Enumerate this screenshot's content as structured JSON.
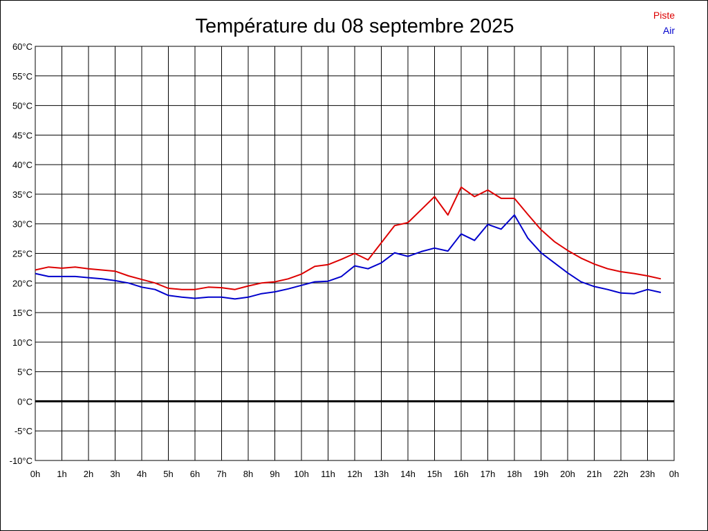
{
  "chart_data": {
    "type": "line",
    "title": "Température du 08 septembre 2025",
    "xlabel": "",
    "ylabel": "",
    "x_tick_labels": [
      "0h",
      "1h",
      "2h",
      "3h",
      "4h",
      "5h",
      "6h",
      "7h",
      "8h",
      "9h",
      "10h",
      "11h",
      "12h",
      "13h",
      "14h",
      "15h",
      "16h",
      "17h",
      "18h",
      "19h",
      "20h",
      "21h",
      "22h",
      "23h",
      "0h"
    ],
    "y_tick_labels": [
      "60°C",
      "55°C",
      "50°C",
      "45°C",
      "40°C",
      "35°C",
      "30°C",
      "25°C",
      "20°C",
      "15°C",
      "10°C",
      "5°C",
      "0°C",
      "-5°C",
      "-10°C"
    ],
    "y_ticks": [
      60,
      55,
      50,
      45,
      40,
      35,
      30,
      25,
      20,
      15,
      10,
      5,
      0,
      -5,
      -10
    ],
    "xlim": [
      0,
      24
    ],
    "ylim": [
      -10,
      60
    ],
    "grid": true,
    "legend_position": "top-right",
    "x": [
      0,
      0.5,
      1,
      1.5,
      2,
      2.5,
      3,
      3.5,
      4,
      4.5,
      5,
      5.5,
      6,
      6.5,
      7,
      7.5,
      8,
      8.5,
      9,
      9.5,
      10,
      10.5,
      11,
      11.5,
      12,
      12.5,
      13,
      13.5,
      14,
      14.5,
      15,
      15.5,
      16,
      16.5,
      17,
      17.5,
      18,
      18.5,
      19,
      19.5,
      20,
      20.5,
      21,
      21.5,
      22,
      22.5,
      23,
      23.5
    ],
    "series": [
      {
        "name": "Piste",
        "color": "#dd0000",
        "values": [
          22.2,
          22.7,
          22.5,
          22.7,
          22.4,
          22.2,
          22.0,
          21.2,
          20.6,
          20.0,
          19.1,
          18.9,
          18.9,
          19.3,
          19.2,
          18.9,
          19.5,
          20.0,
          20.2,
          20.7,
          21.5,
          22.8,
          23.1,
          24.0,
          25.0,
          23.9,
          26.8,
          29.7,
          30.2,
          32.4,
          34.6,
          31.5,
          36.2,
          34.6,
          35.7,
          34.3,
          34.3,
          31.6,
          29.0,
          27.0,
          25.5,
          24.2,
          23.2,
          22.4,
          21.9,
          21.6,
          21.2,
          20.7
        ]
      },
      {
        "name": "Air",
        "color": "#0000cc",
        "values": [
          21.6,
          21.1,
          21.1,
          21.1,
          20.9,
          20.7,
          20.4,
          20.0,
          19.3,
          18.9,
          17.9,
          17.6,
          17.4,
          17.6,
          17.6,
          17.3,
          17.6,
          18.2,
          18.5,
          19.0,
          19.6,
          20.2,
          20.3,
          21.1,
          22.9,
          22.4,
          23.4,
          25.1,
          24.5,
          25.3,
          25.9,
          25.4,
          28.3,
          27.2,
          29.9,
          29.1,
          31.5,
          27.6,
          25.1,
          23.4,
          21.7,
          20.2,
          19.4,
          18.9,
          18.3,
          18.2,
          18.9,
          18.4
        ]
      }
    ]
  }
}
